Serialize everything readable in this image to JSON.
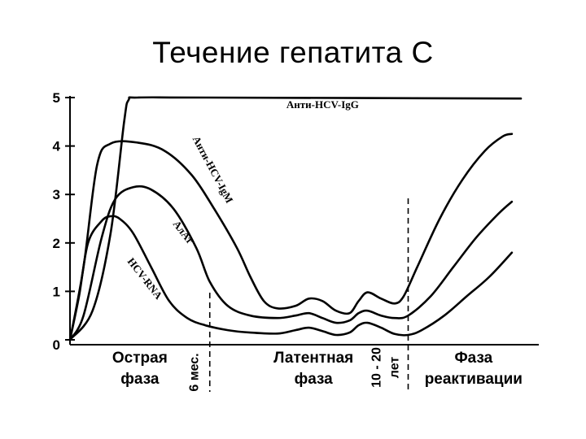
{
  "slide": {
    "title": "Течение гепатита С"
  },
  "chart_data": {
    "type": "line",
    "title": "Течение гепатита С",
    "xlabel": "",
    "ylabel": "",
    "ylim": [
      0,
      5
    ],
    "y_ticks": [
      "0",
      "1",
      "2",
      "3",
      "4",
      "5"
    ],
    "grid": false,
    "legend": "none (series labelled directly on curves)",
    "series": [
      {
        "name": "Анти-HCV-IgG",
        "color": "#000000",
        "points": [
          [
            0.0,
            0.0
          ],
          [
            0.05,
            0.6
          ],
          [
            0.09,
            2.2
          ],
          [
            0.12,
            4.5
          ],
          [
            0.13,
            4.95
          ],
          [
            0.15,
            5.0
          ],
          [
            0.3,
            5.0
          ],
          [
            1.0,
            4.98
          ]
        ]
      },
      {
        "name": "Анти-HCV-IgM",
        "color": "#000000",
        "points": [
          [
            0.0,
            0.0
          ],
          [
            0.03,
            1.5
          ],
          [
            0.06,
            3.6
          ],
          [
            0.09,
            4.05
          ],
          [
            0.15,
            4.07
          ],
          [
            0.21,
            3.9
          ],
          [
            0.27,
            3.4
          ],
          [
            0.32,
            2.7
          ],
          [
            0.37,
            1.9
          ],
          [
            0.4,
            1.3
          ],
          [
            0.43,
            0.8
          ],
          [
            0.46,
            0.65
          ],
          [
            0.5,
            0.7
          ],
          [
            0.53,
            0.85
          ],
          [
            0.56,
            0.8
          ],
          [
            0.59,
            0.6
          ],
          [
            0.62,
            0.55
          ],
          [
            0.64,
            0.8
          ],
          [
            0.66,
            0.98
          ],
          [
            0.69,
            0.85
          ],
          [
            0.72,
            0.75
          ],
          [
            0.74,
            0.9
          ],
          [
            0.77,
            1.5
          ],
          [
            0.82,
            2.5
          ],
          [
            0.87,
            3.3
          ],
          [
            0.92,
            3.9
          ],
          [
            0.96,
            4.2
          ],
          [
            0.98,
            4.25
          ]
        ]
      },
      {
        "name": "АлАт",
        "color": "#000000",
        "points": [
          [
            0.0,
            0.0
          ],
          [
            0.03,
            0.5
          ],
          [
            0.07,
            2.1
          ],
          [
            0.1,
            2.9
          ],
          [
            0.14,
            3.15
          ],
          [
            0.18,
            3.1
          ],
          [
            0.23,
            2.7
          ],
          [
            0.28,
            1.9
          ],
          [
            0.31,
            1.2
          ],
          [
            0.35,
            0.7
          ],
          [
            0.4,
            0.5
          ],
          [
            0.46,
            0.45
          ],
          [
            0.5,
            0.5
          ],
          [
            0.53,
            0.55
          ],
          [
            0.56,
            0.45
          ],
          [
            0.59,
            0.35
          ],
          [
            0.62,
            0.4
          ],
          [
            0.64,
            0.55
          ],
          [
            0.66,
            0.6
          ],
          [
            0.69,
            0.5
          ],
          [
            0.72,
            0.45
          ],
          [
            0.75,
            0.5
          ],
          [
            0.8,
            0.9
          ],
          [
            0.85,
            1.5
          ],
          [
            0.9,
            2.1
          ],
          [
            0.95,
            2.6
          ],
          [
            0.98,
            2.85
          ]
        ]
      },
      {
        "name": "HCV-RNA",
        "color": "#000000",
        "points": [
          [
            0.0,
            0.0
          ],
          [
            0.02,
            0.9
          ],
          [
            0.04,
            2.0
          ],
          [
            0.07,
            2.45
          ],
          [
            0.09,
            2.55
          ],
          [
            0.11,
            2.5
          ],
          [
            0.14,
            2.2
          ],
          [
            0.18,
            1.5
          ],
          [
            0.22,
            0.8
          ],
          [
            0.26,
            0.45
          ],
          [
            0.3,
            0.3
          ],
          [
            0.35,
            0.2
          ],
          [
            0.4,
            0.15
          ],
          [
            0.46,
            0.13
          ],
          [
            0.5,
            0.2
          ],
          [
            0.53,
            0.25
          ],
          [
            0.56,
            0.18
          ],
          [
            0.59,
            0.1
          ],
          [
            0.62,
            0.15
          ],
          [
            0.64,
            0.3
          ],
          [
            0.66,
            0.35
          ],
          [
            0.69,
            0.25
          ],
          [
            0.72,
            0.12
          ],
          [
            0.75,
            0.1
          ],
          [
            0.78,
            0.2
          ],
          [
            0.83,
            0.5
          ],
          [
            0.88,
            0.9
          ],
          [
            0.93,
            1.3
          ],
          [
            0.98,
            1.8
          ]
        ]
      }
    ],
    "phases": [
      {
        "label_lines": [
          "Острая",
          "фаза"
        ],
        "from": 0.0,
        "to": 0.31
      },
      {
        "label_lines": [
          "Латентная",
          "фаза"
        ],
        "from": 0.31,
        "to": 0.75
      },
      {
        "label_lines": [
          "Фаза",
          "реактивации"
        ],
        "from": 0.75,
        "to": 1.0
      }
    ],
    "boundaries": [
      {
        "at": 0.31,
        "label": "6 мес."
      },
      {
        "at": 0.75,
        "label_lines": [
          "10 - 20",
          "лет"
        ]
      }
    ]
  }
}
